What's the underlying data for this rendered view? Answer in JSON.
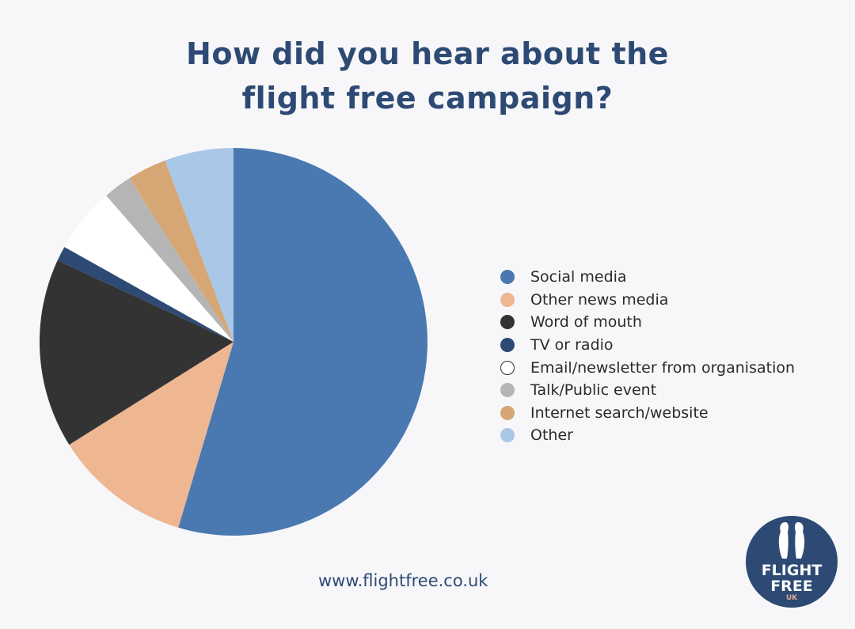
{
  "chart_data": {
    "type": "pie",
    "title_lines": [
      "How did you hear about the",
      "flight free campaign?"
    ],
    "legend_position": "right",
    "slices": [
      {
        "label": "Social media",
        "value": 57,
        "color": "#4a79b1"
      },
      {
        "label": "Other news media",
        "value": 12,
        "color": "#efb692"
      },
      {
        "label": "Word of mouth",
        "value": 16.5,
        "color": "#333333"
      },
      {
        "label": "TV or radio",
        "value": 1.3,
        "color": "#2d4a74"
      },
      {
        "label": "Email/newsletter from organisation",
        "value": 5.7,
        "color": "#ffffff"
      },
      {
        "label": "Talk/Public event",
        "value": 2.5,
        "color": "#b5b5b5"
      },
      {
        "label": "Internet search/website",
        "value": 3.4,
        "color": "#d6a774"
      },
      {
        "label": "Other",
        "value": 6,
        "color": "#a9c7e7"
      }
    ]
  },
  "footer": {
    "url": "www.flightfree.co.uk"
  },
  "logo": {
    "line1": "FLIGHT",
    "line2": "FREE",
    "line3": "UK",
    "color": "#2d4a74"
  }
}
